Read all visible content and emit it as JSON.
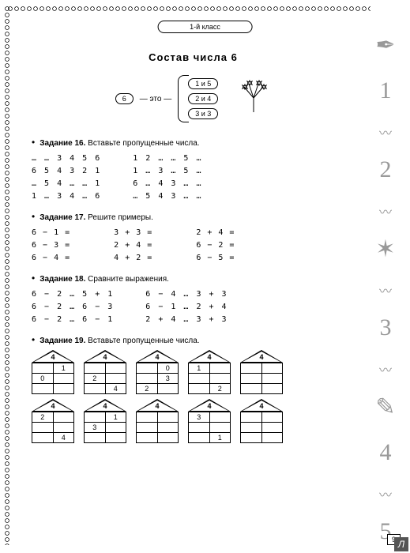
{
  "header": {
    "grade": "1-й класс"
  },
  "title": "Состав числа 6",
  "composition": {
    "main": "6",
    "connector": "— это —",
    "parts": [
      "1 и 5",
      "2 и 4",
      "3 и 3"
    ]
  },
  "tasks": [
    {
      "num": "16",
      "title": "Задание 16.",
      "prompt": "Вставьте пропущенные числа.",
      "columns": [
        "… … 3 4 5 6\n6 5 4 3 2 1\n… 5 4 … … 1\n1 … 3 4 … 6",
        "1 2 … … 5 …\n1 … 3 … 5 …\n6 … 4 3 … …\n… 5 4 3 … …"
      ]
    },
    {
      "num": "17",
      "title": "Задание 17.",
      "prompt": "Решите примеры.",
      "columns": [
        "6 − 1 =\n6 − 3 =\n6 − 4 =",
        "3 + 3 =\n2 + 4 =\n4 + 2 =",
        "2 + 4 =\n6 − 2 =\n6 − 5 ="
      ]
    },
    {
      "num": "18",
      "title": "Задание 18.",
      "prompt": "Сравните выражения.",
      "columns": [
        "6 − 2 … 5 + 1\n6 − 2 … 6 − 3\n6 − 2 … 6 − 1",
        "6 − 4 … 3 + 3\n6 − 1 … 2 + 4\n2 + 4 … 3 + 3"
      ]
    },
    {
      "num": "19",
      "title": "Задание 19.",
      "prompt": "Вставьте пропущенные числа.",
      "houses_rows": [
        [
          {
            "top": "4",
            "cells": [
              [
                "",
                "1"
              ],
              [
                "0",
                ""
              ],
              [
                "",
                ""
              ]
            ]
          },
          {
            "top": "4",
            "cells": [
              [
                "",
                ""
              ],
              [
                "2",
                ""
              ],
              [
                "",
                "4"
              ]
            ]
          },
          {
            "top": "4",
            "cells": [
              [
                "",
                "0"
              ],
              [
                "",
                "3"
              ],
              [
                "2",
                ""
              ]
            ]
          },
          {
            "top": "4",
            "cells": [
              [
                "1",
                ""
              ],
              [
                "",
                ""
              ],
              [
                "",
                "2"
              ]
            ]
          },
          {
            "top": "4",
            "cells": [
              [
                "",
                ""
              ],
              [
                "",
                ""
              ],
              [
                "",
                ""
              ]
            ]
          }
        ],
        [
          {
            "top": "4",
            "cells": [
              [
                "2",
                ""
              ],
              [
                "",
                ""
              ],
              [
                "",
                "4"
              ]
            ]
          },
          {
            "top": "4",
            "cells": [
              [
                "",
                "1"
              ],
              [
                "3",
                ""
              ],
              [
                "",
                ""
              ]
            ]
          },
          {
            "top": "4",
            "cells": [
              [
                "",
                ""
              ],
              [
                "",
                ""
              ],
              [
                "",
                ""
              ]
            ]
          },
          {
            "top": "4",
            "cells": [
              [
                "3",
                ""
              ],
              [
                "",
                ""
              ],
              [
                "",
                "1"
              ]
            ]
          },
          {
            "top": "4",
            "cells": [
              [
                "",
                ""
              ],
              [
                "",
                ""
              ],
              [
                "",
                ""
              ]
            ]
          }
        ]
      ]
    }
  ],
  "page_number": "9",
  "right_decor": [
    "✒",
    "1",
    "~",
    "2",
    "~",
    "✶",
    "~",
    "3",
    "~",
    "✎",
    "4",
    "~",
    "5"
  ],
  "corner": "Л",
  "colors": {
    "text": "#000000",
    "decor": "#999999",
    "bg": "#ffffff"
  }
}
